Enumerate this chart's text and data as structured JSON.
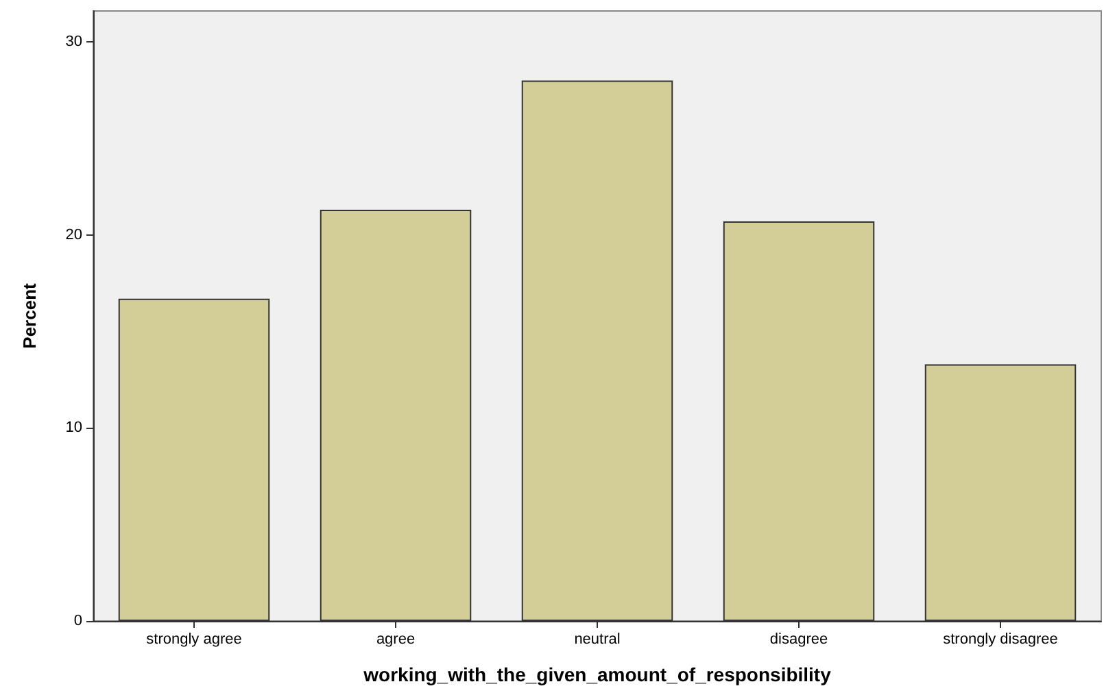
{
  "chart_data": {
    "type": "bar",
    "xlabel": "working_with_the_given_amount_of_responsibility",
    "ylabel": "Percent",
    "categories": [
      "strongly agree",
      "agree",
      "neutral",
      "disagree",
      "strongly disagree"
    ],
    "values": [
      16.7,
      21.3,
      28.0,
      20.7,
      13.3
    ],
    "color": "#d3ce97",
    "ylim": [
      0,
      31.6
    ],
    "yticks": [
      0,
      10,
      20,
      30
    ],
    "grid": false
  }
}
